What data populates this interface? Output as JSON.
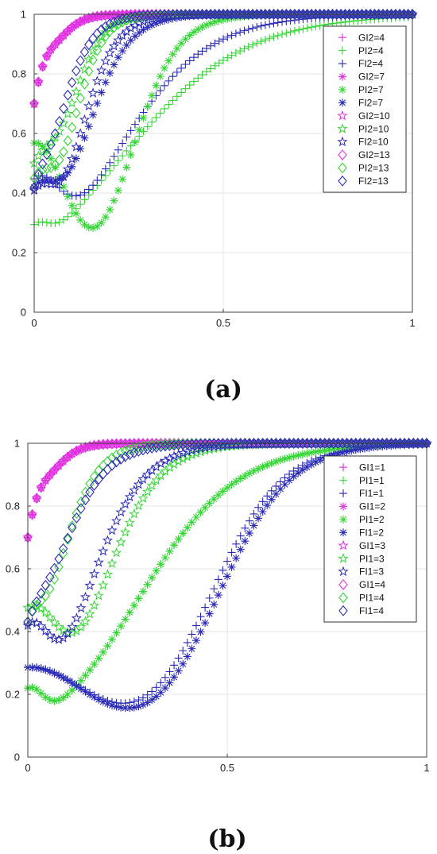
{
  "colors": {
    "magenta": "#e030e0",
    "green": "#33d633",
    "blue": "#2a2ab8",
    "grid": "#e6e6e6",
    "axis": "#404040"
  },
  "chart_data": [
    {
      "type": "scatter",
      "panel_label": "(a)",
      "xlim": [
        0,
        1
      ],
      "ylim": [
        0,
        1
      ],
      "xticks": [
        "0",
        "0.5",
        "1"
      ],
      "yticks": [
        "0",
        "0.2",
        "0.4",
        "0.6",
        "0.8",
        "1"
      ],
      "grid": true,
      "legend_position": "top-right",
      "series": [
        {
          "name": "GI2=4",
          "color": "magenta",
          "marker": "plus",
          "k": 30,
          "lo": 0.0,
          "h": 0.2,
          "w": 0.05
        },
        {
          "name": "PI2=4",
          "color": "green",
          "marker": "plus",
          "k": 6,
          "lo": -1.3,
          "h": 0.08,
          "w": 0.05
        },
        {
          "name": "FI2=4",
          "color": "blue",
          "marker": "plus",
          "k": 8,
          "lo": -1.6,
          "h": 0.28,
          "w": 0.09
        },
        {
          "name": "GI2=7",
          "color": "magenta",
          "marker": "asterisk",
          "k": 30,
          "lo": 0.0,
          "h": 0.2,
          "w": 0.05
        },
        {
          "name": "PI2=7",
          "color": "green",
          "marker": "asterisk",
          "k": 16,
          "lo": -4.0,
          "h": 0.55,
          "w": 0.12
        },
        {
          "name": "FI2=7",
          "color": "blue",
          "marker": "asterisk",
          "k": 17,
          "lo": -2.0,
          "h": 0.3,
          "w": 0.08
        },
        {
          "name": "GI2=10",
          "color": "magenta",
          "marker": "star",
          "k": 30,
          "lo": 0.0,
          "h": 0.2,
          "w": 0.05
        },
        {
          "name": "PI2=10",
          "color": "green",
          "marker": "star",
          "k": 25,
          "lo": -2.0,
          "h": 0.38,
          "w": 0.08
        },
        {
          "name": "FI2=10",
          "color": "blue",
          "marker": "star",
          "k": 20,
          "lo": -2.1,
          "h": 0.3,
          "w": 0.07
        },
        {
          "name": "GI2=13",
          "color": "magenta",
          "marker": "diamond",
          "k": 30,
          "lo": 0.0,
          "h": 0.2,
          "w": 0.05
        },
        {
          "name": "PI2=13",
          "color": "green",
          "marker": "diamond",
          "k": 25,
          "lo": -2.2,
          "h": 0.35,
          "w": 0.07
        },
        {
          "name": "FI2=13",
          "color": "blue",
          "marker": "diamond",
          "k": 22,
          "lo": -1.0,
          "h": 0.15,
          "w": 0.05
        }
      ]
    },
    {
      "type": "scatter",
      "panel_label": "(b)",
      "xlim": [
        0,
        1
      ],
      "ylim": [
        0,
        1
      ],
      "xticks": [
        "0",
        "0.5",
        "1"
      ],
      "yticks": [
        "0",
        "0.2",
        "0.4",
        "0.6",
        "0.8",
        "1"
      ],
      "grid": true,
      "legend_position": "top-right",
      "series": [
        {
          "name": "GI1=1",
          "color": "magenta",
          "marker": "plus",
          "k": 30,
          "lo": 0.0,
          "h": 0.2,
          "w": 0.05
        },
        {
          "name": "PI1=1",
          "color": "green",
          "marker": "plus",
          "k": 8,
          "lo": -2.2,
          "h": 0.12,
          "w": 0.05
        },
        {
          "name": "FI1=1",
          "color": "blue",
          "marker": "plus",
          "k": 11,
          "lo": -5.0,
          "h": 0.28,
          "w": 0.22
        },
        {
          "name": "GI1=2",
          "color": "magenta",
          "marker": "asterisk",
          "k": 30,
          "lo": 0.0,
          "h": 0.2,
          "w": 0.05
        },
        {
          "name": "PI1=2",
          "color": "green",
          "marker": "asterisk",
          "k": 8,
          "lo": -2.2,
          "h": 0.12,
          "w": 0.05
        },
        {
          "name": "FI1=2",
          "color": "blue",
          "marker": "asterisk",
          "k": 11,
          "lo": -5.2,
          "h": 0.28,
          "w": 0.22
        },
        {
          "name": "GI1=3",
          "color": "magenta",
          "marker": "star",
          "k": 30,
          "lo": 0.0,
          "h": 0.2,
          "w": 0.05
        },
        {
          "name": "PI1=3",
          "color": "green",
          "marker": "star",
          "k": 14,
          "lo": -2.5,
          "h": 0.4,
          "w": 0.1
        },
        {
          "name": "FI1=3",
          "color": "blue",
          "marker": "star",
          "k": 14,
          "lo": -2.0,
          "h": 0.3,
          "w": 0.07
        },
        {
          "name": "GI1=4",
          "color": "magenta",
          "marker": "diamond",
          "k": 30,
          "lo": 0.0,
          "h": 0.2,
          "w": 0.05
        },
        {
          "name": "PI1=4",
          "color": "green",
          "marker": "diamond",
          "k": 20,
          "lo": -1.2,
          "h": 0.2,
          "w": 0.05
        },
        {
          "name": "FI1=4",
          "color": "blue",
          "marker": "diamond",
          "k": 16,
          "lo": -0.8,
          "h": 0.12,
          "w": 0.06
        }
      ]
    }
  ]
}
